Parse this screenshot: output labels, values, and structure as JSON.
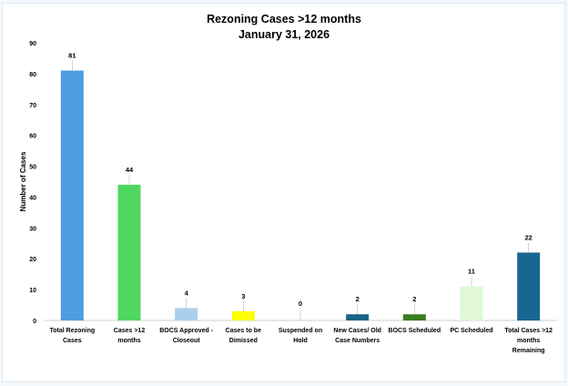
{
  "chart_data": {
    "type": "bar",
    "title": "Rezoning Cases >12 months",
    "subtitle": "January 31, 2026",
    "xlabel": "",
    "ylabel": "Number of Cases",
    "ylim": [
      0,
      90
    ],
    "yticks": [
      0,
      10,
      20,
      30,
      40,
      50,
      60,
      70,
      80,
      90
    ],
    "grid": false,
    "legend": "none",
    "categories": [
      [
        "Total Rezoning",
        "Cases"
      ],
      [
        "Cases >12",
        "months"
      ],
      [
        "BOCS Approved -",
        "Closeout"
      ],
      [
        "Cases to be",
        "Dimissed"
      ],
      [
        "Suspended on",
        "Hold"
      ],
      [
        "New Cases/ Old",
        "Case Numbers"
      ],
      [
        "BOCS Scheduled"
      ],
      [
        "PC Scheduled"
      ],
      [
        "Total  Cases >12",
        "months",
        "Remaining"
      ]
    ],
    "values": [
      81,
      44,
      4,
      3,
      0,
      2,
      2,
      11,
      22
    ],
    "colors": [
      "#4e9de3",
      "#4fd760",
      "#a9cfee",
      "#ffff00",
      "#ffffff",
      "#1a6487",
      "#3a7d22",
      "#e0f8d8",
      "#196791"
    ]
  }
}
